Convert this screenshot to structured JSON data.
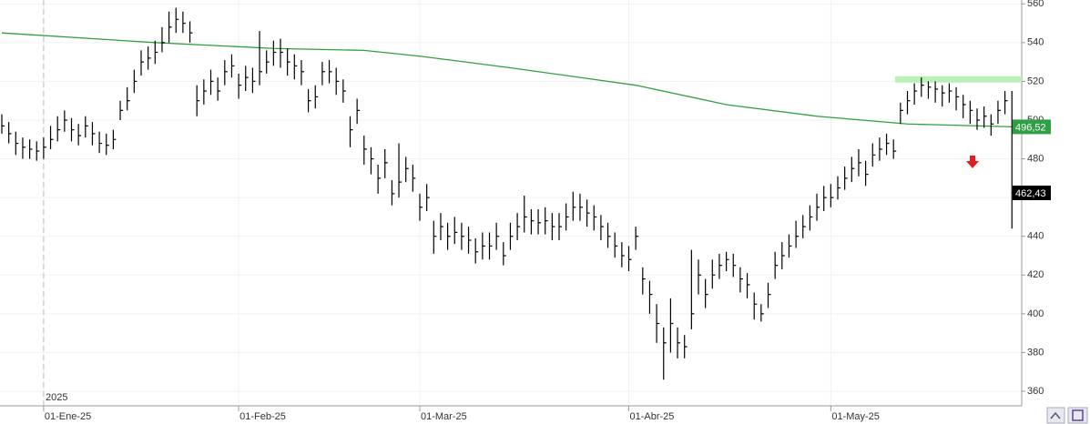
{
  "chart_data": {
    "type": "hlc",
    "categories": [
      null,
      null,
      null,
      null,
      null,
      null,
      "01-Ene-25",
      null,
      null,
      null,
      null,
      null,
      null,
      null,
      null,
      null,
      null,
      null,
      null,
      null,
      null,
      null,
      null,
      null,
      null,
      null,
      null,
      null,
      null,
      null,
      null,
      null,
      null,
      null,
      "01-Feb-25",
      null,
      null,
      null,
      null,
      null,
      null,
      null,
      null,
      null,
      null,
      null,
      null,
      null,
      null,
      null,
      null,
      null,
      null,
      null,
      null,
      null,
      null,
      null,
      null,
      null,
      "01-Mar-25",
      null,
      null,
      null,
      null,
      null,
      null,
      null,
      null,
      null,
      null,
      null,
      null,
      null,
      null,
      null,
      null,
      null,
      null,
      null,
      null,
      null,
      null,
      null,
      null,
      null,
      null,
      null,
      null,
      null,
      "01-Abr-25",
      null,
      null,
      null,
      null,
      null,
      null,
      null,
      null,
      null,
      null,
      null,
      null,
      null,
      null,
      null,
      null,
      null,
      null,
      null,
      null,
      null,
      null,
      null,
      null,
      null,
      null,
      null,
      null,
      "01-May-25",
      null,
      null,
      null,
      null,
      null,
      null,
      null,
      null,
      null,
      null,
      null,
      null,
      null,
      null,
      null,
      null,
      null,
      null,
      null,
      null,
      null,
      null,
      null,
      null,
      null,
      null
    ],
    "high": [
      503,
      499,
      494,
      491,
      490,
      489,
      491,
      497,
      502,
      505,
      501,
      498,
      502,
      499,
      494,
      493,
      495,
      510,
      517,
      526,
      536,
      538,
      541,
      548,
      556,
      558,
      556,
      551,
      518,
      521,
      526,
      522,
      531,
      534,
      524,
      528,
      527,
      546,
      536,
      541,
      542,
      537,
      534,
      531,
      516,
      518,
      530,
      531,
      527,
      521,
      502,
      511,
      492,
      486,
      477,
      485,
      469,
      488,
      481,
      477,
      462,
      467,
      448,
      452,
      447,
      450,
      447,
      445,
      439,
      442,
      442,
      447,
      437,
      447,
      452,
      461,
      454,
      454,
      455,
      452,
      452,
      457,
      463,
      462,
      459,
      456,
      451,
      447,
      442,
      437,
      435,
      445,
      424,
      417,
      405,
      393,
      408,
      393,
      389,
      433,
      428,
      418,
      428,
      431,
      432,
      431,
      424,
      421,
      411,
      405,
      416,
      432,
      437,
      441,
      448,
      451,
      456,
      462,
      466,
      467,
      471,
      476,
      481,
      485,
      479,
      488,
      491,
      493,
      490,
      509,
      515,
      519,
      522,
      520,
      520,
      518,
      519,
      517,
      513,
      510,
      506,
      507,
      503,
      510,
      515,
      515
    ],
    "low": [
      493,
      488,
      482,
      480,
      480,
      479,
      480,
      485,
      489,
      494,
      489,
      487,
      491,
      487,
      483,
      482,
      485,
      500,
      505,
      514,
      523,
      526,
      529,
      535,
      540,
      545,
      545,
      540,
      502,
      508,
      513,
      510,
      518,
      522,
      511,
      515,
      514,
      518,
      524,
      528,
      527,
      523,
      521,
      518,
      504,
      506,
      518,
      519,
      513,
      509,
      486,
      498,
      477,
      472,
      462,
      470,
      456,
      460,
      468,
      463,
      448,
      453,
      431,
      438,
      433,
      436,
      433,
      431,
      426,
      428,
      428,
      433,
      425,
      433,
      438,
      442,
      441,
      441,
      441,
      438,
      438,
      443,
      448,
      448,
      445,
      443,
      438,
      434,
      429,
      424,
      422,
      433,
      410,
      400,
      385,
      366,
      380,
      377,
      377,
      392,
      410,
      403,
      413,
      418,
      422,
      419,
      411,
      408,
      397,
      396,
      403,
      418,
      423,
      429,
      434,
      439,
      443,
      448,
      453,
      455,
      459,
      464,
      468,
      471,
      466,
      476,
      479,
      482,
      480,
      498,
      503,
      508,
      512,
      511,
      509,
      507,
      509,
      505,
      501,
      498,
      495,
      496,
      492,
      498,
      503,
      444
    ],
    "close": [
      497,
      493,
      488,
      486,
      485,
      484,
      486,
      490,
      495,
      500,
      495,
      492,
      497,
      493,
      488,
      487,
      490,
      505,
      510,
      520,
      530,
      532,
      535,
      540,
      548,
      552,
      550,
      545,
      510,
      515,
      520,
      515,
      525,
      528,
      518,
      522,
      520,
      525,
      530,
      535,
      535,
      530,
      528,
      525,
      510,
      512,
      525,
      525,
      520,
      515,
      495,
      505,
      485,
      480,
      470,
      478,
      462,
      468,
      475,
      470,
      455,
      460,
      440,
      445,
      440,
      442,
      440,
      438,
      432,
      435,
      435,
      440,
      430,
      440,
      445,
      450,
      448,
      447,
      448,
      445,
      445,
      450,
      455,
      455,
      452,
      450,
      445,
      440,
      435,
      430,
      428,
      440,
      418,
      410,
      395,
      385,
      395,
      385,
      383,
      400,
      420,
      410,
      420,
      425,
      428,
      425,
      418,
      415,
      405,
      400,
      410,
      425,
      430,
      435,
      440,
      445,
      450,
      455,
      460,
      460,
      465,
      470,
      475,
      478,
      472,
      482,
      485,
      488,
      484,
      505,
      510,
      515,
      518,
      517,
      516,
      514,
      515,
      512,
      508,
      505,
      500,
      502,
      498,
      505,
      510,
      462.43
    ],
    "color": "#000000",
    "last_label": {
      "value": 462.43,
      "label": "462,43"
    },
    "moving_average": {
      "color": "#2ea043",
      "x": [
        0,
        22,
        39,
        52,
        60,
        73,
        91,
        104,
        117,
        130,
        145
      ],
      "values": [
        545,
        540,
        537,
        536,
        533,
        527,
        518,
        508,
        502,
        498,
        496.52
      ],
      "last_label": {
        "value": 496.52,
        "label": "496,52"
      }
    },
    "resistance": 521,
    "year_label": "2025",
    "ylim": [
      352.5,
      562
    ],
    "yticks": [
      360,
      380,
      400,
      420,
      440,
      460,
      480,
      500,
      520,
      540,
      560
    ],
    "grid": true
  }
}
